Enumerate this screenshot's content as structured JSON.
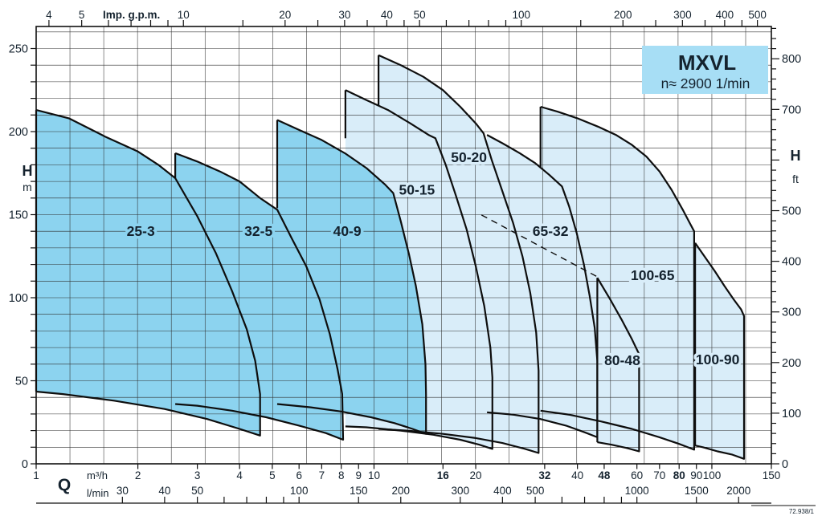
{
  "title_box": {
    "model": "MXVL",
    "speed": "n≈ 2900 1/min",
    "bg": "#a7def5"
  },
  "footnote": "72.938/1",
  "axis_labels": {
    "flow": "Q",
    "flow_unit_m3h": "m³/h",
    "flow_unit_lmin": "l/min",
    "top_unit": "Imp. g.p.m.",
    "head": "H",
    "head_unit_m": "m",
    "head_unit_ft": "ft"
  },
  "colors": {
    "dark_fill": "#8cd3ef",
    "light_fill": "#d9edf9",
    "outline": "#0e0e0e",
    "grid": "#2e2e2e",
    "axis": "#111111",
    "text": "#14222e"
  },
  "chart_data": {
    "type": "area",
    "title": "MXVL multistage pump family coverage chart",
    "speed": "n≈ 2900 1/min",
    "x_axis": {
      "scale": "log",
      "unit_primary": "m³/h",
      "min": 1,
      "max": 150,
      "m3h_labels": [
        1,
        2,
        3,
        4,
        5,
        6,
        7,
        8,
        9,
        10,
        16,
        20,
        32,
        40,
        48,
        60,
        70,
        80,
        90,
        100,
        150
      ],
      "m3h_bold": [
        16,
        32,
        48,
        80
      ],
      "lmin_ticks": [
        30,
        40,
        50,
        60,
        70,
        80,
        90,
        100,
        150,
        200,
        300,
        400,
        500,
        600,
        700,
        800,
        900,
        1000,
        1500,
        2000
      ],
      "lmin_labels": [
        30,
        40,
        50,
        100,
        150,
        200,
        300,
        400,
        500,
        1000,
        1500,
        2000
      ],
      "gpm_ticks": [
        4,
        5,
        6,
        7,
        8,
        9,
        10,
        15,
        20,
        25,
        30,
        35,
        40,
        45,
        50,
        60,
        70,
        80,
        90,
        100,
        150,
        200,
        250,
        300,
        350,
        400,
        450,
        500
      ],
      "gpm_labels": [
        4,
        5,
        10,
        20,
        30,
        40,
        50,
        100,
        200,
        300,
        400,
        500
      ],
      "gpm_to_m3h": 0.272766,
      "lmin_to_m3h": 0.06
    },
    "y_axis": {
      "scale": "linear",
      "unit_primary": "m",
      "min": 0,
      "max": 263,
      "tick_step_m": 10,
      "label_step_m": 50,
      "m_labels": [
        0,
        50,
        100,
        150,
        200,
        250
      ],
      "ft_tick_step": 20,
      "ft_max": 860,
      "ft_labels": [
        0,
        100,
        200,
        300,
        400,
        500,
        700,
        800
      ],
      "m_to_ft": 3.2808
    },
    "dashed_line": [
      [
        20.8,
        149.8
      ],
      [
        45.8,
        112.6
      ]
    ],
    "series": [
      {
        "name": "50-15",
        "group": "light",
        "label_at": [
          13.4,
          165
        ],
        "step": [
          [
            8.23,
            196
          ],
          [
            8.23,
            225
          ]
        ],
        "outline": [
          [
            8.23,
            225
          ],
          [
            9.5,
            219
          ],
          [
            11,
            213
          ],
          [
            12.8,
            205
          ],
          [
            14.5,
            198
          ],
          [
            15.2,
            196
          ],
          [
            16.3,
            180
          ],
          [
            17.5,
            161
          ],
          [
            18.8,
            141
          ],
          [
            20,
            119
          ],
          [
            21.2,
            95
          ],
          [
            22.1,
            70
          ],
          [
            22.4,
            52
          ],
          [
            22.4,
            9
          ],
          [
            20.5,
            11.5
          ],
          [
            18,
            14.5
          ],
          [
            15,
            17.5
          ],
          [
            12,
            20
          ],
          [
            9.5,
            22
          ],
          [
            8.23,
            22.5
          ]
        ]
      },
      {
        "name": "50-20",
        "group": "light",
        "label_at": [
          19.1,
          184.5
        ],
        "step": [
          [
            10.31,
            216
          ],
          [
            10.31,
            246
          ]
        ],
        "outline": [
          [
            10.31,
            246
          ],
          [
            12,
            240
          ],
          [
            14,
            233
          ],
          [
            16,
            225
          ],
          [
            18,
            215
          ],
          [
            20,
            205
          ],
          [
            21.1,
            199
          ],
          [
            22.3,
            183
          ],
          [
            24,
            164
          ],
          [
            25.8,
            145
          ],
          [
            27.5,
            125
          ],
          [
            29,
            103
          ],
          [
            30.2,
            79
          ],
          [
            30.7,
            56
          ],
          [
            30.7,
            6.5
          ],
          [
            28,
            9
          ],
          [
            24,
            12.5
          ],
          [
            20,
            15.5
          ],
          [
            16,
            18
          ],
          [
            12.5,
            20
          ],
          [
            10.31,
            21
          ]
        ]
      },
      {
        "name": "65-32",
        "group": "light",
        "label_at": [
          33.3,
          140
        ],
        "step": null,
        "outline": [
          [
            21.6,
            198
          ],
          [
            24,
            193
          ],
          [
            27,
            187
          ],
          [
            30,
            181
          ],
          [
            33,
            174
          ],
          [
            36,
            167
          ],
          [
            37.8,
            155
          ],
          [
            39.8,
            139
          ],
          [
            41.8,
            120
          ],
          [
            43.5,
            101
          ],
          [
            45,
            82
          ],
          [
            45.8,
            62
          ],
          [
            45.8,
            16
          ],
          [
            42,
            19
          ],
          [
            37,
            23
          ],
          [
            31,
            27
          ],
          [
            26,
            29.5
          ],
          [
            21.6,
            31
          ]
        ]
      },
      {
        "name": "100-65",
        "group": "light",
        "label_at": [
          66.8,
          113.5
        ],
        "step": [
          [
            31.1,
            178
          ],
          [
            31.1,
            215
          ]
        ],
        "outline": [
          [
            31.1,
            215
          ],
          [
            35,
            212
          ],
          [
            40,
            208
          ],
          [
            46,
            203
          ],
          [
            52,
            198
          ],
          [
            58,
            192
          ],
          [
            64,
            185
          ],
          [
            70,
            176
          ],
          [
            76,
            165
          ],
          [
            82,
            153
          ],
          [
            86,
            145
          ],
          [
            88.6,
            140
          ],
          [
            88.6,
            8.5
          ],
          [
            80,
            12
          ],
          [
            70,
            16
          ],
          [
            58,
            21
          ],
          [
            47,
            25.5
          ],
          [
            38,
            29.5
          ],
          [
            31.1,
            32
          ]
        ]
      },
      {
        "name": "80-48",
        "group": "light",
        "label_at": [
          54.3,
          62.3
        ],
        "step": [
          [
            45.8,
            13
          ],
          [
            45.8,
            112
          ]
        ],
        "outline": [
          [
            45.8,
            112
          ],
          [
            50,
            99
          ],
          [
            54,
            87
          ],
          [
            58,
            75
          ],
          [
            60.9,
            66
          ],
          [
            60.9,
            7.5
          ],
          [
            56,
            9.5
          ],
          [
            50.5,
            11.5
          ],
          [
            45.8,
            13
          ]
        ]
      },
      {
        "name": "100-90",
        "group": "light",
        "label_at": [
          104,
          62.8
        ],
        "step": [
          [
            89.2,
            11
          ],
          [
            89.2,
            133
          ]
        ],
        "outline": [
          [
            89.2,
            133
          ],
          [
            95,
            125
          ],
          [
            102,
            116
          ],
          [
            109,
            107
          ],
          [
            116,
            99
          ],
          [
            122,
            93
          ],
          [
            124.5,
            89
          ],
          [
            124.5,
            3
          ],
          [
            115,
            5.5
          ],
          [
            104,
            7.5
          ],
          [
            94,
            10
          ],
          [
            89.2,
            11
          ]
        ]
      },
      {
        "name": "25-3",
        "group": "dark",
        "label_at": [
          2.04,
          140
        ],
        "step": [
          [
            1,
            43.5
          ],
          [
            1,
            213
          ]
        ],
        "outline": [
          [
            1,
            213
          ],
          [
            1.25,
            208
          ],
          [
            1.6,
            197
          ],
          [
            2,
            188
          ],
          [
            2.3,
            180
          ],
          [
            2.58,
            172
          ],
          [
            3,
            149
          ],
          [
            3.4,
            127
          ],
          [
            3.8,
            104
          ],
          [
            4.2,
            81
          ],
          [
            4.45,
            62
          ],
          [
            4.6,
            42
          ],
          [
            4.6,
            17
          ],
          [
            4,
            21
          ],
          [
            3.2,
            27
          ],
          [
            2.4,
            33
          ],
          [
            1.7,
            38
          ],
          [
            1.2,
            42
          ],
          [
            1,
            43.5
          ]
        ]
      },
      {
        "name": "32-5",
        "group": "dark",
        "label_at": [
          4.55,
          140
        ],
        "step": [
          [
            2.58,
            172
          ],
          [
            2.58,
            187
          ]
        ],
        "outline": [
          [
            2.58,
            187
          ],
          [
            3,
            182
          ],
          [
            3.5,
            176
          ],
          [
            4,
            170
          ],
          [
            4.6,
            160
          ],
          [
            5.17,
            153
          ],
          [
            5.7,
            136
          ],
          [
            6.3,
            119
          ],
          [
            6.9,
            99
          ],
          [
            7.4,
            78
          ],
          [
            7.8,
            57
          ],
          [
            8.05,
            42
          ],
          [
            8.1,
            14.5
          ],
          [
            7.2,
            18.5
          ],
          [
            6,
            23
          ],
          [
            4.8,
            28
          ],
          [
            3.8,
            32
          ],
          [
            3,
            35
          ],
          [
            2.58,
            36
          ]
        ]
      },
      {
        "name": "40-9",
        "group": "dark",
        "label_at": [
          8.33,
          140
        ],
        "step": [
          [
            5.17,
            154
          ],
          [
            5.17,
            207
          ]
        ],
        "outline": [
          [
            5.17,
            207
          ],
          [
            6,
            201
          ],
          [
            7,
            195
          ],
          [
            8.2,
            187
          ],
          [
            9.5,
            178
          ],
          [
            10.8,
            168
          ],
          [
            11.4,
            163
          ],
          [
            12,
            146
          ],
          [
            12.7,
            126
          ],
          [
            13.3,
            107
          ],
          [
            13.9,
            84
          ],
          [
            14.2,
            60
          ],
          [
            14.25,
            42
          ],
          [
            14.25,
            18
          ],
          [
            13,
            21
          ],
          [
            11.5,
            24.5
          ],
          [
            9.8,
            28
          ],
          [
            8,
            31.5
          ],
          [
            6.5,
            34
          ],
          [
            5.17,
            36
          ]
        ]
      }
    ]
  }
}
